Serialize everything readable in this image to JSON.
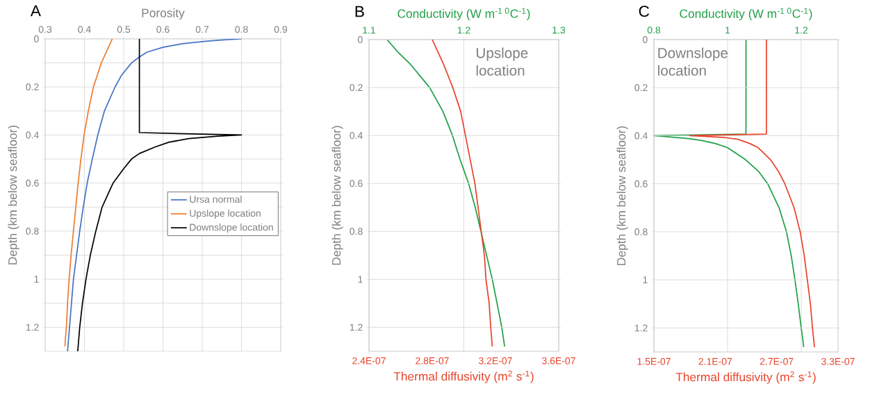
{
  "chart_data": [
    {
      "type": "line",
      "title": "A",
      "xlabel": "Porosity",
      "ylabel": "Depth (km below seafloor)",
      "xlim": [
        0.3,
        0.9
      ],
      "xticks": [
        0.3,
        0.4,
        0.5,
        0.6,
        0.7,
        0.8,
        0.9
      ],
      "ylim": [
        1.3,
        0
      ],
      "yticks": [
        0,
        {
          "value": 0.1,
          "label": null
        },
        0.2,
        {
          "value": 0.3,
          "label": null
        },
        0.4,
        {
          "value": 0.5,
          "label": null
        },
        0.6,
        {
          "value": 0.7,
          "label": null
        },
        0.8,
        {
          "value": 0.9,
          "label": null
        },
        1,
        {
          "value": 1.1,
          "label": null
        },
        1.2
      ],
      "grid": true,
      "legend": "right",
      "series": [
        {
          "name": "Ursa normal",
          "color": "#4472c4",
          "x": [
            0.8,
            0.75,
            0.71,
            0.65,
            0.6,
            0.56,
            0.54,
            0.52,
            0.495,
            0.478,
            0.451,
            0.434,
            0.42,
            0.407,
            0.397,
            0.388,
            0.38,
            0.372,
            0.367,
            0.362,
            0.357
          ],
          "values": [
            0,
            0.005,
            0.01,
            0.02,
            0.035,
            0.055,
            0.075,
            0.1,
            0.15,
            0.2,
            0.3,
            0.4,
            0.5,
            0.6,
            0.7,
            0.8,
            0.9,
            1.0,
            1.1,
            1.2,
            1.3
          ]
        },
        {
          "name": "Upslope location",
          "color": "#ed7d31",
          "x": [
            0.471,
            0.443,
            0.423,
            0.41,
            0.399,
            0.391,
            0.384,
            0.378,
            0.372,
            0.366,
            0.361,
            0.357,
            0.354,
            0.35
          ],
          "values": [
            0,
            0.1,
            0.2,
            0.3,
            0.4,
            0.5,
            0.6,
            0.7,
            0.8,
            0.9,
            1.0,
            1.1,
            1.2,
            1.28
          ]
        },
        {
          "name": "Downslope location",
          "color": "#000000",
          "x": [
            0.54,
            0.54,
            0.8,
            0.74,
            0.666,
            0.615,
            0.58,
            0.54,
            0.52,
            0.5,
            0.473,
            0.445,
            0.429,
            0.415,
            0.404,
            0.395,
            0.388,
            0.383
          ],
          "values": [
            0,
            0.39,
            0.4,
            0.405,
            0.415,
            0.43,
            0.45,
            0.477,
            0.5,
            0.54,
            0.6,
            0.7,
            0.8,
            0.9,
            1.0,
            1.1,
            1.2,
            1.3
          ]
        }
      ]
    },
    {
      "type": "line",
      "title": "B",
      "xlabel": "Thermal diffusivity (m$^{2}$ s$^{-1}$)",
      "x2label": "Conductivity (W m$^{-1 0}$C$^{-1}$)",
      "ylabel": "Depth (km below seafloor)",
      "xlim": [
        2.4e-07,
        3.6e-07
      ],
      "xticks": [
        {
          "value": 2.4e-07,
          "label": "2.4E-07"
        },
        {
          "value": 2.8e-07,
          "label": "2.8E-07"
        },
        {
          "value": 3.2e-07,
          "label": "3.2E-07"
        },
        {
          "value": 3.6e-07,
          "label": "3.6E-07"
        }
      ],
      "x2lim": [
        1.1,
        1.3
      ],
      "x2ticks": [
        1.1,
        1.2,
        1.3
      ],
      "ylim": [
        1.3,
        0
      ],
      "yticks": [
        0,
        0.2,
        0.4,
        0.6,
        0.8,
        1,
        1.2
      ],
      "grid": true,
      "annotations": [
        "Upslope location"
      ],
      "series": [
        {
          "color": "#1fa047",
          "axis": "x2",
          "x": [
            1.119,
            1.13,
            1.143,
            1.164,
            1.178,
            1.188,
            1.196,
            1.205,
            1.212,
            1.218,
            1.224,
            1.23,
            1.235,
            1.24,
            1.243
          ],
          "values": [
            0,
            0.05,
            0.1,
            0.2,
            0.3,
            0.4,
            0.5,
            0.6,
            0.7,
            0.8,
            0.9,
            1.0,
            1.1,
            1.2,
            1.28
          ]
        },
        {
          "color": "#e9432b",
          "x": [
            2.8e-07,
            2.87e-07,
            2.93e-07,
            2.98e-07,
            3.01e-07,
            3.04e-07,
            3.07e-07,
            3.09e-07,
            3.11e-07,
            3.13e-07,
            3.14e-07,
            3.16e-07,
            3.17e-07,
            3.18e-07
          ],
          "values": [
            0,
            0.1,
            0.2,
            0.3,
            0.4,
            0.5,
            0.6,
            0.7,
            0.8,
            0.9,
            1.0,
            1.1,
            1.2,
            1.28
          ]
        }
      ]
    },
    {
      "type": "line",
      "title": "C",
      "xlabel": "Thermal diffusivity (m$^{2}$ s$^{-1}$)",
      "x2label": "Conductivity (W m$^{-1 0}$C$^{-1}$)",
      "ylabel": "Depth (km below seafloor)",
      "xlim": [
        1.5e-07,
        3.3e-07
      ],
      "xticks": [
        {
          "value": 1.5e-07,
          "label": "1.5E-07"
        },
        {
          "value": 2.1e-07,
          "label": "2.1E-07"
        },
        {
          "value": 2.7e-07,
          "label": "2.7E-07"
        },
        {
          "value": 3.3e-07,
          "label": "3.3E-07"
        }
      ],
      "x2lim": [
        0.8,
        1.3
      ],
      "x2ticks": [
        0.8,
        1,
        1.2
      ],
      "ylim": [
        1.3,
        0
      ],
      "yticks": [
        0,
        0.2,
        0.4,
        0.6,
        0.8,
        1,
        1.2
      ],
      "grid": true,
      "annotations": [
        "Downslope location"
      ],
      "series": [
        {
          "color": "#1fa047",
          "axis": "x2",
          "x": [
            1.05,
            1.05,
            0.8,
            0.84,
            0.894,
            0.93,
            0.968,
            1.0,
            1.049,
            1.085,
            1.109,
            1.14,
            1.16,
            1.173,
            1.183,
            1.192,
            1.2,
            1.207
          ],
          "values": [
            0,
            0.393,
            0.4,
            0.405,
            0.412,
            0.42,
            0.433,
            0.45,
            0.5,
            0.55,
            0.6,
            0.7,
            0.8,
            0.9,
            1.0,
            1.1,
            1.2,
            1.28
          ]
        },
        {
          "color": "#e9432b",
          "x": [
            2.6e-07,
            2.6e-07,
            1.85e-07,
            2.05e-07,
            2.2e-07,
            2.32e-07,
            2.44e-07,
            2.52e-07,
            2.64e-07,
            2.72e-07,
            2.78e-07,
            2.87e-07,
            2.93e-07,
            2.97e-07,
            3e-07,
            3.03e-07,
            3.05e-07,
            3.07e-07
          ],
          "values": [
            0,
            0.393,
            0.4,
            0.404,
            0.408,
            0.415,
            0.433,
            0.45,
            0.5,
            0.55,
            0.6,
            0.7,
            0.8,
            0.9,
            1.0,
            1.1,
            1.2,
            1.28
          ]
        }
      ]
    }
  ]
}
